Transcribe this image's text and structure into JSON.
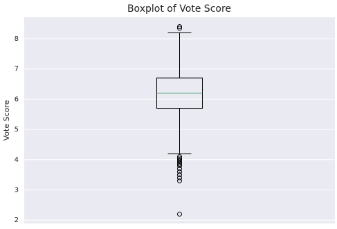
{
  "chart_data": {
    "type": "box",
    "title": "Boxplot of Vote Score",
    "y_label": "Vote Score",
    "series": [
      {
        "whislo": 4.2,
        "q1": 5.7,
        "med": 6.2,
        "q3": 6.7,
        "whishi": 8.2,
        "fliers": [
          8.4,
          8.35,
          4.1,
          4.05,
          4.0,
          3.95,
          3.9,
          3.85,
          3.8,
          3.7,
          3.6,
          3.5,
          3.4,
          3.3,
          2.2
        ],
        "color": "#000000",
        "median_color": "#3a9b6a"
      }
    ],
    "ylim": [
      1.89,
      8.71
    ],
    "yticks": [
      2,
      3,
      4,
      5,
      6,
      7,
      8
    ],
    "grid": true,
    "background": "#eaeaf2"
  }
}
